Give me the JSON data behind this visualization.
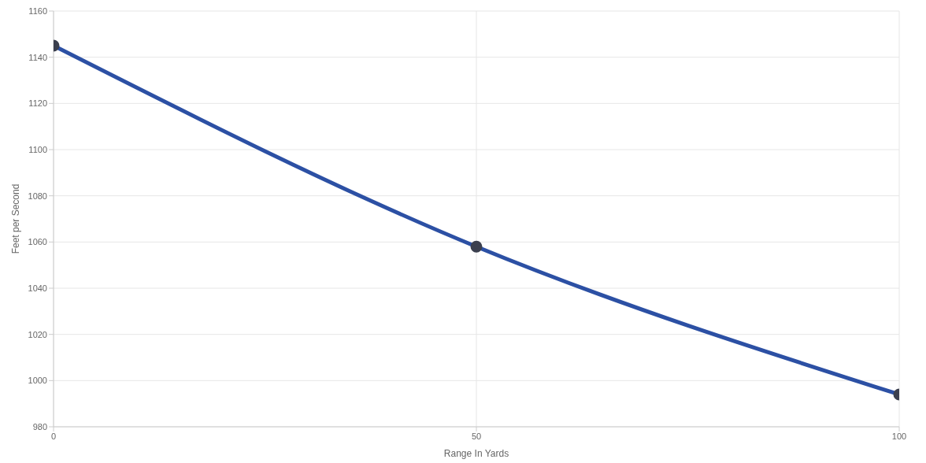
{
  "chart_data": {
    "type": "line",
    "xlabel": "Range In Yards",
    "ylabel": "Feet per Second",
    "x": [
      0,
      50,
      100
    ],
    "series": [
      {
        "color": "#2c50a4",
        "values": [
          1145,
          1058,
          994
        ]
      }
    ],
    "xlim": [
      0,
      100
    ],
    "xticks": [
      0,
      50,
      100
    ],
    "ylim": [
      980,
      1160
    ],
    "yticks": [
      980,
      1000,
      1020,
      1040,
      1060,
      1080,
      1100,
      1120,
      1140,
      1160
    ],
    "grid": true,
    "marker": "circle",
    "legend": false
  }
}
